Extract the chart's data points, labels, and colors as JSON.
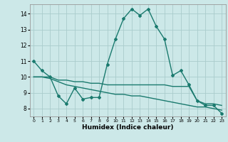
{
  "xlabel": "Humidex (Indice chaleur)",
  "bg_color": "#cce8e8",
  "grid_color": "#aacccc",
  "line_color": "#1a7a6e",
  "xlim": [
    -0.5,
    23.5
  ],
  "ylim": [
    7.5,
    14.6
  ],
  "yticks": [
    8,
    9,
    10,
    11,
    12,
    13,
    14
  ],
  "xticks": [
    0,
    1,
    2,
    3,
    4,
    5,
    6,
    7,
    8,
    9,
    10,
    11,
    12,
    13,
    14,
    15,
    16,
    17,
    18,
    19,
    20,
    21,
    22,
    23
  ],
  "series": [
    [
      11.0,
      10.4,
      10.0,
      8.8,
      8.3,
      9.3,
      8.6,
      8.7,
      8.7,
      10.8,
      12.4,
      13.7,
      14.3,
      13.9,
      14.3,
      13.2,
      12.4,
      10.1,
      10.4,
      9.5,
      8.5,
      8.2,
      8.2,
      7.7
    ],
    [
      10.0,
      10.0,
      10.0,
      9.8,
      9.8,
      9.7,
      9.7,
      9.6,
      9.6,
      9.5,
      9.5,
      9.5,
      9.5,
      9.5,
      9.5,
      9.5,
      9.5,
      9.4,
      9.4,
      9.4,
      8.5,
      8.3,
      8.3,
      8.2
    ],
    [
      10.0,
      10.0,
      9.9,
      9.7,
      9.5,
      9.4,
      9.3,
      9.2,
      9.1,
      9.0,
      8.9,
      8.9,
      8.8,
      8.8,
      8.7,
      8.6,
      8.5,
      8.4,
      8.3,
      8.2,
      8.1,
      8.1,
      8.0,
      7.9
    ]
  ]
}
